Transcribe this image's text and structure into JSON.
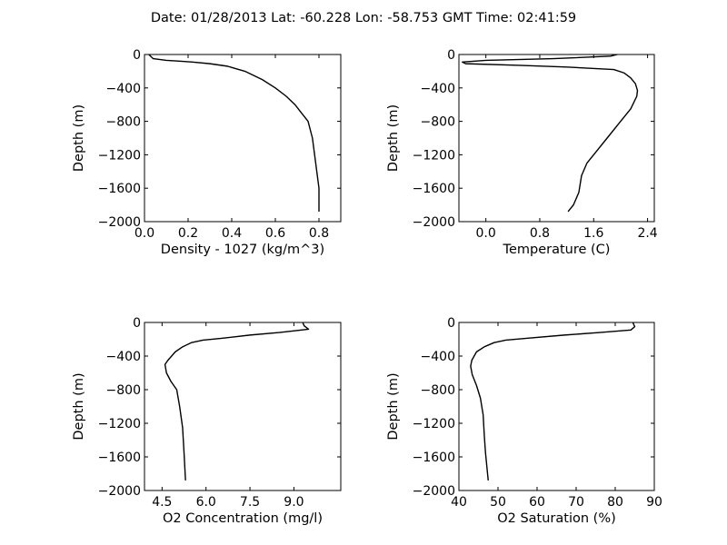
{
  "title": "Date: 01/28/2013  Lat:  -60.228 Lon:  -58.753  GMT Time: 02:41:59",
  "chart_data": [
    {
      "type": "line",
      "xlabel": "Density - 1027 (kg/m^3)",
      "ylabel": "Depth (m)",
      "xlim": [
        0.0,
        0.9
      ],
      "ylim": [
        -2000,
        0
      ],
      "xticks": [
        0.0,
        0.2,
        0.4,
        0.6,
        0.8
      ],
      "xtick_labels": [
        "0.0",
        "0.2",
        "0.4",
        "0.6",
        "0.8"
      ],
      "yticks": [
        0,
        -400,
        -800,
        -1200,
        -1600,
        -2000
      ],
      "ytick_labels": [
        "0",
        "−400",
        "−800",
        "−1200",
        "−1600",
        "−2000"
      ],
      "series": [
        {
          "x": [
            0.02,
            0.04,
            0.1,
            0.16,
            0.22,
            0.3,
            0.38,
            0.42,
            0.46,
            0.5,
            0.54,
            0.6,
            0.65,
            0.69,
            0.72,
            0.75,
            0.77,
            0.78,
            0.79,
            0.8,
            0.8
          ],
          "y": [
            0,
            -50,
            -70,
            -80,
            -90,
            -110,
            -140,
            -170,
            -200,
            -250,
            -300,
            -400,
            -500,
            -600,
            -700,
            -800,
            -1000,
            -1200,
            -1400,
            -1600,
            -1880
          ]
        }
      ]
    },
    {
      "type": "line",
      "xlabel": "Temperature (C)",
      "ylabel": "Depth (m)",
      "xlim": [
        -0.4,
        2.5
      ],
      "ylim": [
        -2000,
        0
      ],
      "xticks": [
        0.0,
        0.8,
        1.6,
        2.4
      ],
      "xtick_labels": [
        "0.0",
        "0.8",
        "1.6",
        "2.4"
      ],
      "yticks": [
        0,
        -400,
        -800,
        -1200,
        -1600,
        -2000
      ],
      "ytick_labels": [
        "0",
        "−400",
        "−800",
        "−1200",
        "−1600",
        "−2000"
      ],
      "series": [
        {
          "x": [
            1.95,
            1.85,
            1.0,
            0.0,
            -0.35,
            -0.3,
            0.5,
            1.2,
            1.9,
            2.05,
            2.15,
            2.22,
            2.25,
            2.24,
            2.15,
            2.0,
            1.8,
            1.65,
            1.5,
            1.42,
            1.38,
            1.3,
            1.22
          ],
          "y": [
            0,
            -20,
            -50,
            -70,
            -90,
            -110,
            -130,
            -150,
            -180,
            -220,
            -280,
            -350,
            -430,
            -500,
            -650,
            -800,
            -1000,
            -1150,
            -1300,
            -1450,
            -1650,
            -1800,
            -1880
          ]
        }
      ]
    },
    {
      "type": "line",
      "xlabel": "O2 Concentration (mg/l)",
      "ylabel": "Depth (m)",
      "xlim": [
        3.9,
        10.6
      ],
      "ylim": [
        -2000,
        0
      ],
      "xticks": [
        4.5,
        6.0,
        7.5,
        9.0
      ],
      "xtick_labels": [
        "4.5",
        "6.0",
        "7.5",
        "9.0"
      ],
      "yticks": [
        0,
        -400,
        -800,
        -1200,
        -1600,
        -2000
      ],
      "ytick_labels": [
        "0",
        "−400",
        "−800",
        "−1200",
        "−1600",
        "−2000"
      ],
      "series": [
        {
          "x": [
            9.3,
            9.35,
            9.5,
            8.5,
            7.5,
            6.5,
            5.9,
            5.5,
            5.2,
            4.95,
            4.7,
            4.6,
            4.65,
            4.8,
            5.0,
            5.1,
            5.2,
            5.25,
            5.3
          ],
          "y": [
            0,
            -40,
            -80,
            -120,
            -150,
            -190,
            -210,
            -240,
            -290,
            -350,
            -450,
            -500,
            -600,
            -700,
            -800,
            -1000,
            -1250,
            -1550,
            -1880
          ]
        }
      ]
    },
    {
      "type": "line",
      "xlabel": "O2 Saturation (%)",
      "ylabel": "Depth (m)",
      "xlim": [
        40,
        90
      ],
      "ylim": [
        -2000,
        0
      ],
      "xticks": [
        40,
        50,
        60,
        70,
        80,
        90
      ],
      "xtick_labels": [
        "40",
        "50",
        "60",
        "70",
        "80",
        "90"
      ],
      "yticks": [
        0,
        -400,
        -800,
        -1200,
        -1600,
        -2000
      ],
      "ytick_labels": [
        "0",
        "−400",
        "−800",
        "−1200",
        "−1600",
        "−2000"
      ],
      "series": [
        {
          "x": [
            84.5,
            85,
            84,
            76,
            67,
            57,
            52,
            49,
            46.5,
            44.5,
            43.3,
            43.0,
            43.4,
            44.5,
            45.5,
            46.2,
            46.5,
            46.8,
            47.5
          ],
          "y": [
            0,
            -50,
            -90,
            -120,
            -150,
            -190,
            -210,
            -240,
            -290,
            -350,
            -450,
            -520,
            -620,
            -750,
            -900,
            -1100,
            -1350,
            -1550,
            -1880
          ]
        }
      ]
    }
  ]
}
